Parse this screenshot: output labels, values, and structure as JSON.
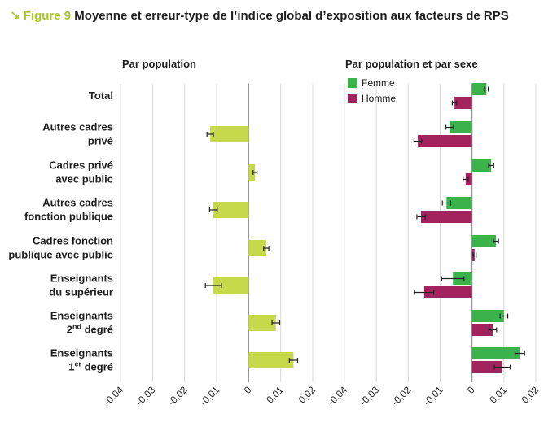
{
  "figure": {
    "arrow": "↘",
    "number": "Figure 9",
    "title": "Moyenne et erreur-type de l’indice global d’exposition aux facteurs de RPS"
  },
  "colors": {
    "population": "#c5d94a",
    "femme": "#3bb34a",
    "homme": "#a3235f"
  },
  "chart_data": [
    {
      "type": "bar",
      "orientation": "horizontal",
      "title": "Par population",
      "categories": [
        [
          "Total"
        ],
        [
          "Autres cadres",
          "privé"
        ],
        [
          "Cadres privé",
          "avec public"
        ],
        [
          "Autres cadres",
          "fonction publique"
        ],
        [
          "Cadres fonction",
          "publique avec public"
        ],
        [
          "Enseignants",
          "du supérieur"
        ],
        [
          "Enseignants",
          "2nd degré"
        ],
        [
          "Enseignants",
          "1er degré"
        ]
      ],
      "series": [
        {
          "values": [
            null,
            -0.012,
            0.002,
            -0.011,
            0.0055,
            -0.011,
            0.0085,
            0.014
          ],
          "errors": [
            null,
            0.001,
            0.0006,
            0.0012,
            0.0008,
            0.0025,
            0.0012,
            0.0013
          ]
        }
      ],
      "xlim": [
        -0.04,
        0.02
      ],
      "xticks": [
        "-0,04",
        "-0,03",
        "-0,02",
        "-0,01",
        "0",
        "0,01",
        "0,02"
      ],
      "grid": true
    },
    {
      "type": "bar",
      "orientation": "horizontal",
      "title": "Par population et par sexe",
      "legend_position": "top-left",
      "categories": [
        [
          "Total"
        ],
        [
          "Autres cadres",
          "privé"
        ],
        [
          "Cadres privé",
          "avec public"
        ],
        [
          "Autres cadres",
          "fonction publique"
        ],
        [
          "Cadres fonction",
          "publique avec public"
        ],
        [
          "Enseignants",
          "du supérieur"
        ],
        [
          "Enseignants",
          "2nd degré"
        ],
        [
          "Enseignants",
          "1er degré"
        ]
      ],
      "series": [
        {
          "name": "Femme",
          "values": [
            0.0045,
            -0.007,
            0.006,
            -0.008,
            0.0075,
            -0.006,
            0.01,
            0.015
          ],
          "errors": [
            0.0006,
            0.0012,
            0.0008,
            0.0013,
            0.0008,
            0.0035,
            0.0012,
            0.0015
          ]
        },
        {
          "name": "Homme",
          "values": [
            -0.0055,
            -0.017,
            -0.002,
            -0.016,
            0.0008,
            -0.015,
            0.0065,
            0.0095
          ],
          "errors": [
            0.0007,
            0.0012,
            0.0008,
            0.0013,
            0.0005,
            0.003,
            0.0012,
            0.0025
          ]
        }
      ],
      "xlim": [
        -0.04,
        0.02
      ],
      "xticks": [
        "-0,04",
        "-0,03",
        "-0,02",
        "-0,01",
        "0",
        "0,01",
        "0,02"
      ],
      "grid": true
    }
  ]
}
